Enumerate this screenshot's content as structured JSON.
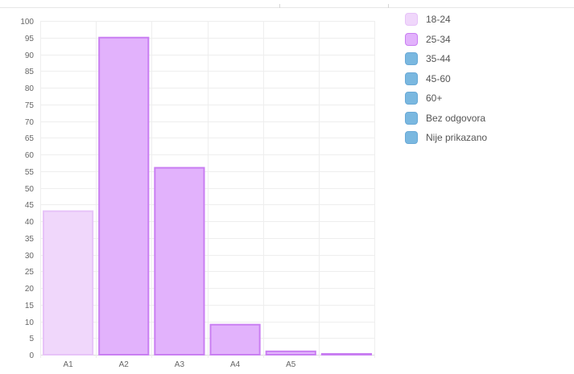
{
  "chart_data": {
    "type": "bar",
    "title": "",
    "xlabel": "",
    "ylabel": "",
    "ylim": [
      0,
      100
    ],
    "yticks": [
      0,
      5,
      10,
      15,
      20,
      25,
      30,
      35,
      40,
      45,
      50,
      55,
      60,
      65,
      70,
      75,
      80,
      85,
      90,
      95,
      100
    ],
    "categories": [
      "A1",
      "A2",
      "A3",
      "A4",
      "A5",
      ""
    ],
    "values": [
      43,
      95,
      56,
      9,
      1,
      0.2
    ],
    "bar_series": [
      "18-24",
      "25-34",
      "25-34",
      "25-34",
      "25-34",
      "25-34"
    ],
    "grid": true,
    "legend_position": "right",
    "legend": [
      {
        "label": "18-24",
        "fill": "#f0d7fb",
        "stroke": "#e7c3f8"
      },
      {
        "label": "25-34",
        "fill": "#e2b2fc",
        "stroke": "#c97ef2"
      },
      {
        "label": "35-44",
        "fill": "#7ab8e0",
        "stroke": "#6aa9d6"
      },
      {
        "label": "45-60",
        "fill": "#7ab8e0",
        "stroke": "#6aa9d6"
      },
      {
        "label": "60+",
        "fill": "#7ab8e0",
        "stroke": "#6aa9d6"
      },
      {
        "label": "Bez odgovora",
        "fill": "#7ab8e0",
        "stroke": "#6aa9d6"
      },
      {
        "label": "Nije prikazano",
        "fill": "#7ab8e0",
        "stroke": "#6aa9d6"
      }
    ]
  }
}
